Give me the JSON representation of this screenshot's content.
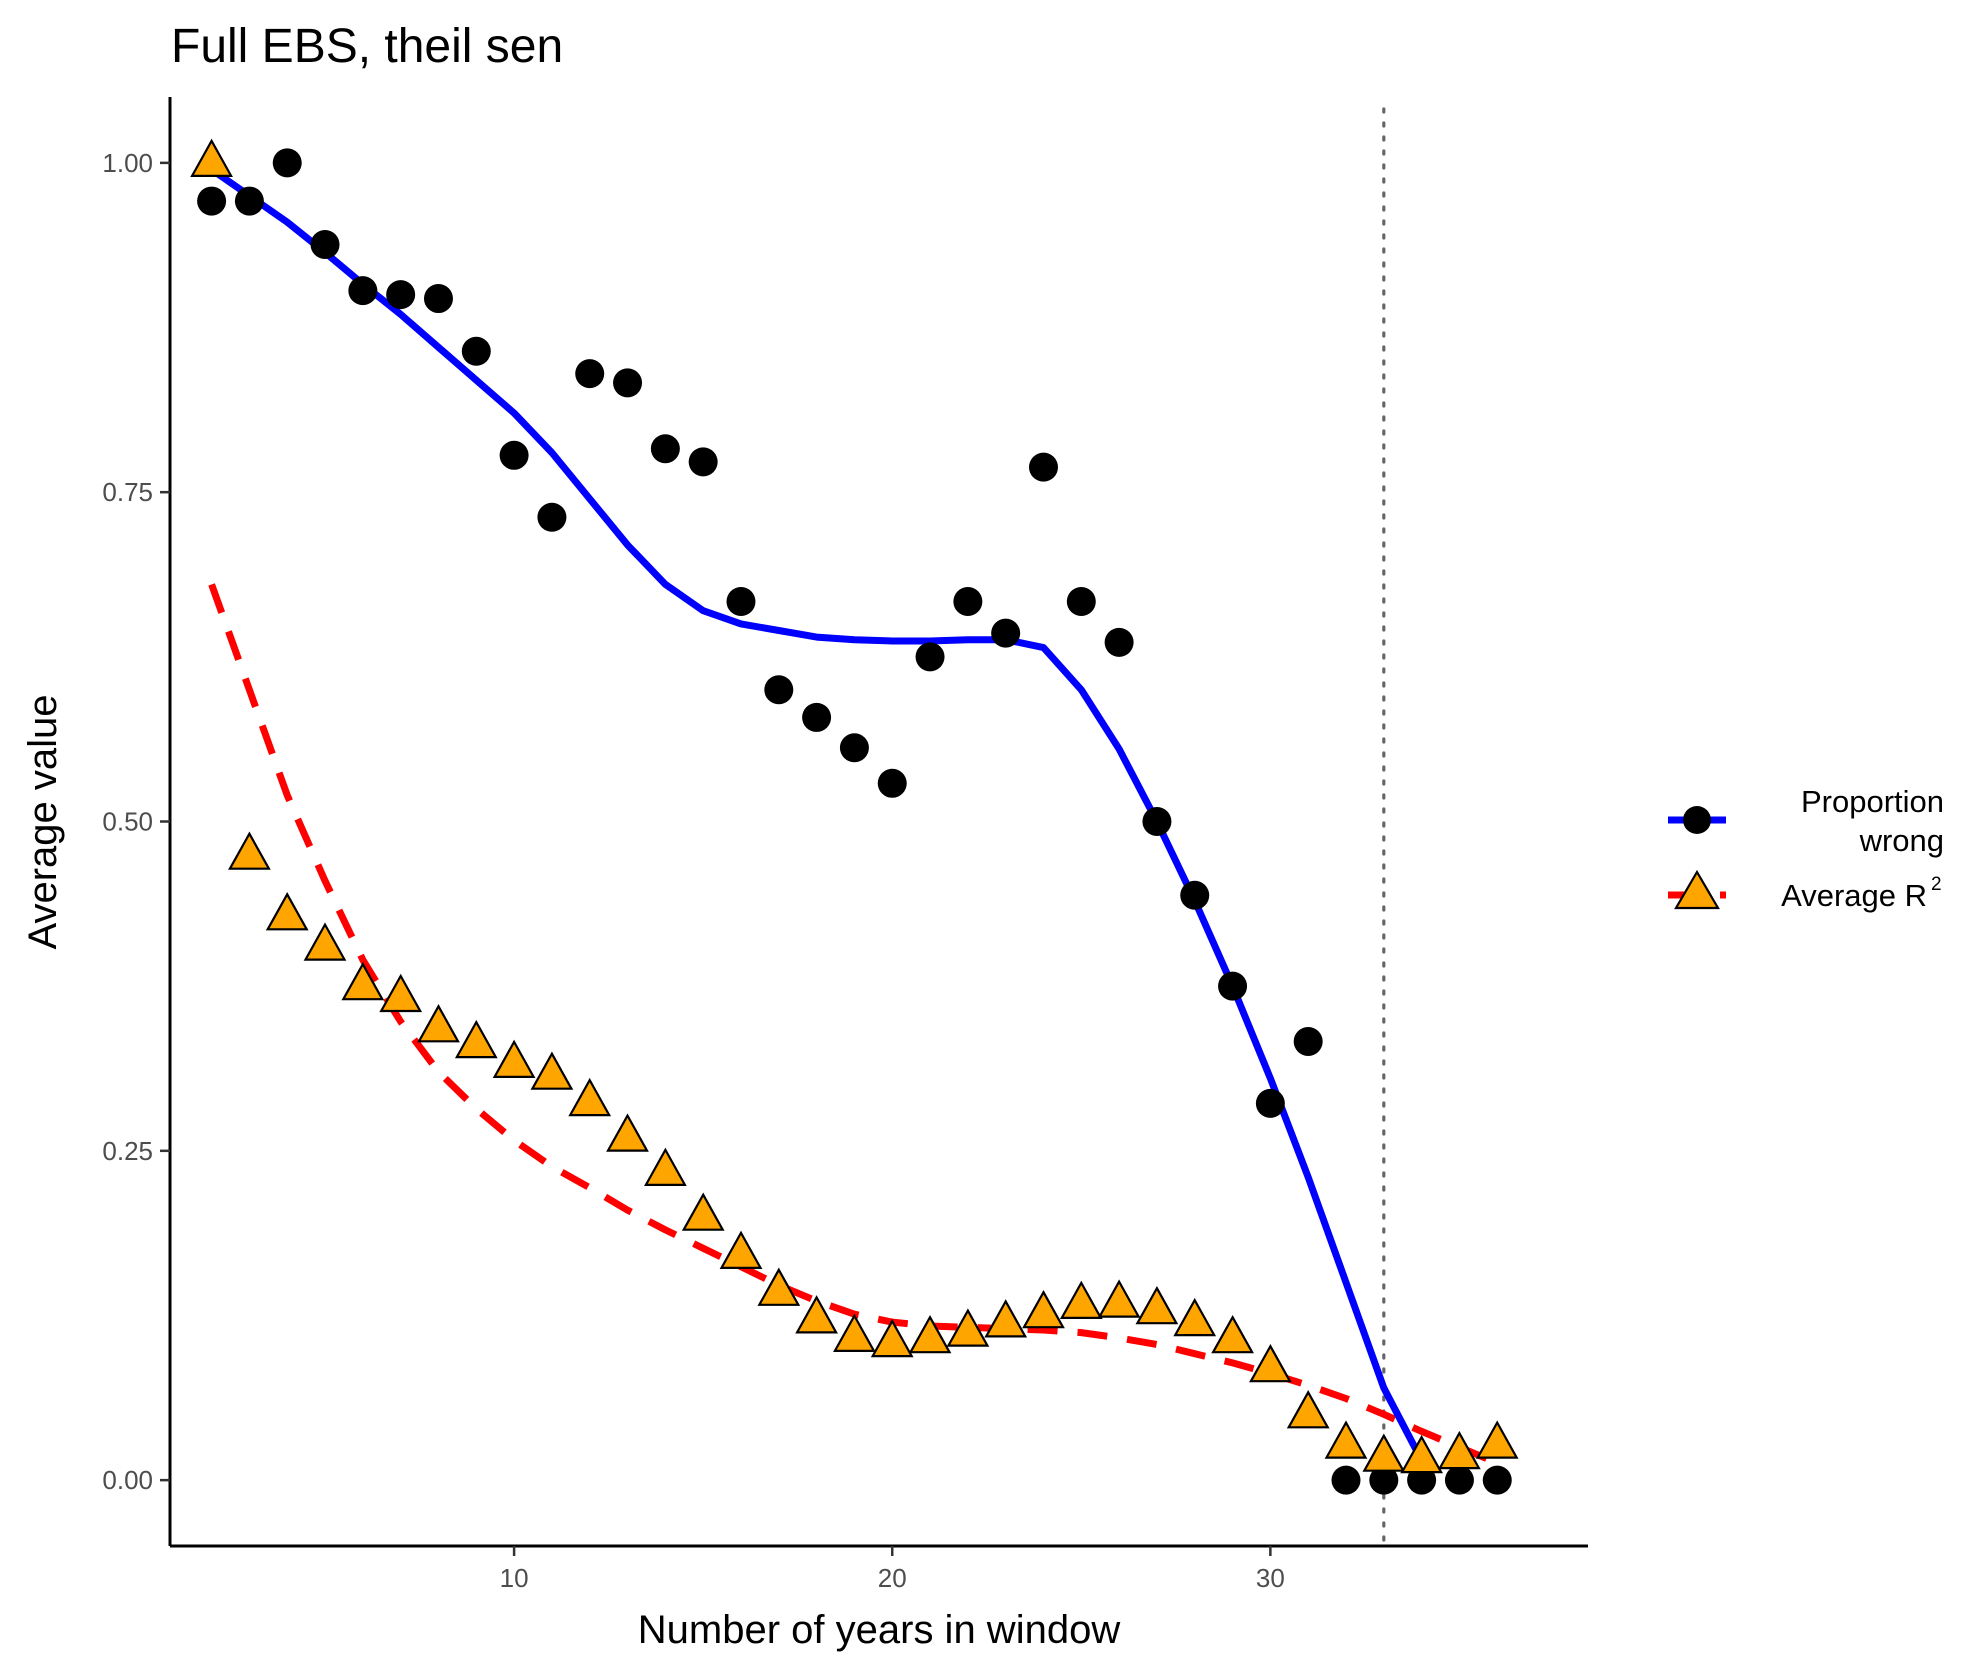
{
  "chart_data": {
    "type": "scatter",
    "title": "Full EBS, theil sen",
    "xlabel": "Number of years in window",
    "ylabel": "Average value",
    "xlim": [
      0.9,
      38.4
    ],
    "ylim": [
      -0.05,
      1.05
    ],
    "x_ticks": [
      10,
      20,
      30
    ],
    "x_tick_labels": [
      "10",
      "20",
      "30"
    ],
    "y_ticks": [
      0,
      0.25,
      0.5,
      0.75,
      1
    ],
    "y_tick_labels": [
      "0.00",
      "0.25",
      "0.50",
      "0.75",
      "1.00"
    ],
    "grid": false,
    "legend_position": "right",
    "vline": {
      "x": 33,
      "style": "dotted",
      "color": "#666666"
    },
    "series": [
      {
        "name": "Proportion wrong",
        "legend_line1": "Proportion",
        "legend_line2": "wrong",
        "marker": "circle",
        "marker_color": "#000000",
        "line_color": "#0000ff",
        "line_style": "solid",
        "x": [
          2,
          3,
          4,
          5,
          6,
          7,
          8,
          9,
          10,
          11,
          12,
          13,
          14,
          15,
          16,
          17,
          18,
          19,
          20,
          21,
          22,
          23,
          24,
          25,
          26,
          27,
          28,
          29,
          30,
          31,
          32,
          33,
          34,
          35,
          36
        ],
        "y": [
          0.971,
          0.971,
          1.0,
          0.938,
          0.903,
          0.9,
          0.897,
          0.857,
          0.778,
          0.731,
          0.84,
          0.833,
          0.783,
          0.773,
          0.667,
          0.6,
          0.579,
          0.556,
          0.529,
          0.625,
          0.667,
          0.643,
          0.769,
          0.667,
          0.636,
          0.5,
          0.444,
          0.375,
          0.286,
          0.333,
          0.0,
          0.0,
          0.0,
          0.0,
          0.0
        ],
        "smooth_x": [
          2,
          3,
          4,
          5,
          6,
          7,
          8,
          9,
          10,
          11,
          12,
          13,
          14,
          15,
          16,
          17,
          18,
          19,
          20,
          21,
          22,
          23,
          24,
          25,
          26,
          27,
          28,
          29,
          30,
          31,
          32,
          33,
          34,
          34.2
        ],
        "smooth_y": [
          0.995,
          0.975,
          0.955,
          0.932,
          0.908,
          0.885,
          0.86,
          0.835,
          0.81,
          0.78,
          0.745,
          0.71,
          0.68,
          0.66,
          0.65,
          0.645,
          0.64,
          0.638,
          0.637,
          0.637,
          0.638,
          0.638,
          0.632,
          0.6,
          0.555,
          0.5,
          0.44,
          0.375,
          0.305,
          0.23,
          0.15,
          0.07,
          0.015,
          0.0
        ]
      },
      {
        "name": "Average R²",
        "legend_label": "Average R",
        "legend_sup": "2",
        "marker": "triangle",
        "marker_color": "#ffa500",
        "line_color": "#ff0000",
        "line_style": "dashed",
        "x": [
          2,
          3,
          4,
          5,
          6,
          7,
          8,
          9,
          10,
          11,
          12,
          13,
          14,
          15,
          16,
          17,
          18,
          19,
          20,
          21,
          22,
          23,
          24,
          25,
          26,
          27,
          28,
          29,
          30,
          31,
          32,
          33,
          34,
          35,
          36
        ],
        "y": [
          1.0,
          0.474,
          0.428,
          0.405,
          0.375,
          0.366,
          0.343,
          0.331,
          0.316,
          0.307,
          0.287,
          0.26,
          0.234,
          0.2,
          0.171,
          0.143,
          0.122,
          0.108,
          0.104,
          0.107,
          0.112,
          0.119,
          0.126,
          0.133,
          0.134,
          0.129,
          0.12,
          0.107,
          0.085,
          0.05,
          0.027,
          0.017,
          0.016,
          0.019,
          0.027
        ],
        "smooth_x": [
          2,
          3,
          4,
          5,
          6,
          7,
          8,
          9,
          10,
          11,
          12,
          13,
          14,
          15,
          16,
          17,
          18,
          19,
          20,
          21,
          22,
          23,
          24,
          25,
          26,
          27,
          28,
          29,
          30,
          31,
          32,
          33,
          34,
          35,
          36
        ],
        "smooth_y": [
          0.68,
          0.6,
          0.52,
          0.455,
          0.395,
          0.348,
          0.31,
          0.282,
          0.258,
          0.238,
          0.222,
          0.205,
          0.19,
          0.176,
          0.162,
          0.148,
          0.136,
          0.126,
          0.12,
          0.117,
          0.116,
          0.115,
          0.114,
          0.112,
          0.108,
          0.103,
          0.096,
          0.089,
          0.081,
          0.072,
          0.062,
          0.05,
          0.037,
          0.025,
          0.013
        ]
      }
    ]
  }
}
